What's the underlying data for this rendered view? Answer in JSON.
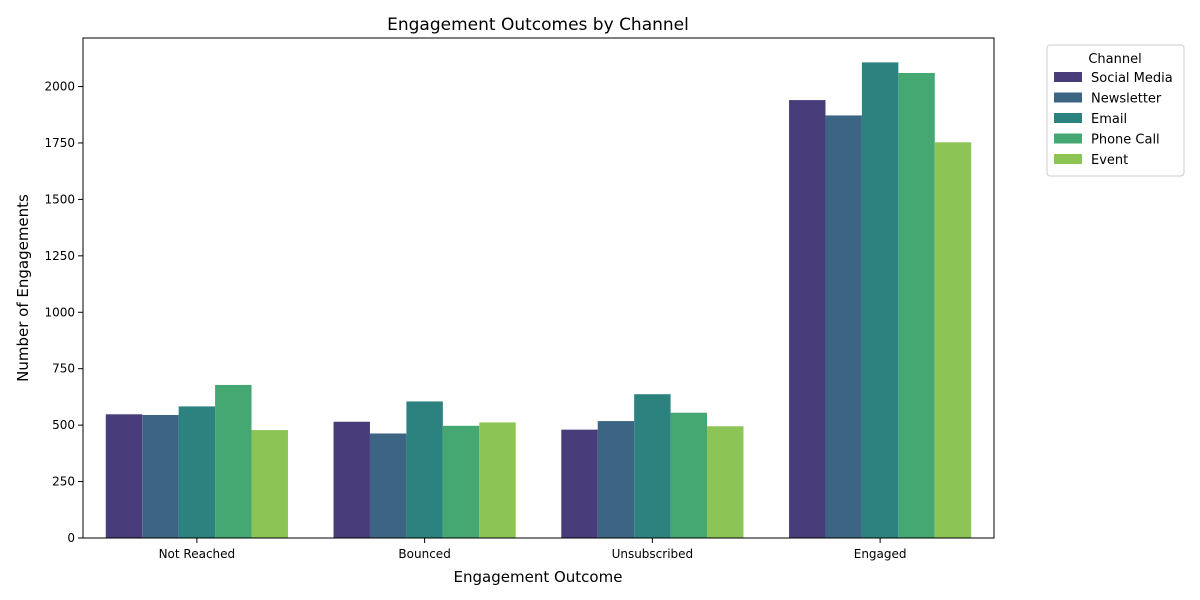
{
  "chart_data": {
    "type": "bar",
    "title": "Engagement Outcomes by Channel",
    "xlabel": "Engagement Outcome",
    "ylabel": "Number of Engagements",
    "categories": [
      "Not Reached",
      "Bounced",
      "Unsubscribed",
      "Engaged"
    ],
    "ylim": [
      0,
      2215
    ],
    "yticks": [
      0,
      250,
      500,
      750,
      1000,
      1250,
      1500,
      1750,
      2000
    ],
    "grid": false,
    "legend": {
      "title": "Channel",
      "placement": "outside-top-right"
    },
    "series": [
      {
        "name": "Social Media",
        "color": "#483D7A",
        "values": [
          548,
          515,
          480,
          1940
        ]
      },
      {
        "name": "Newsletter",
        "color": "#3C6584",
        "values": [
          545,
          463,
          518,
          1872
        ]
      },
      {
        "name": "Email",
        "color": "#2C827E",
        "values": [
          583,
          605,
          637,
          2107
        ]
      },
      {
        "name": "Phone Call",
        "color": "#45A873",
        "values": [
          678,
          497,
          555,
          2060
        ]
      },
      {
        "name": "Event",
        "color": "#8CC556",
        "values": [
          478,
          512,
          495,
          1753
        ]
      }
    ]
  }
}
